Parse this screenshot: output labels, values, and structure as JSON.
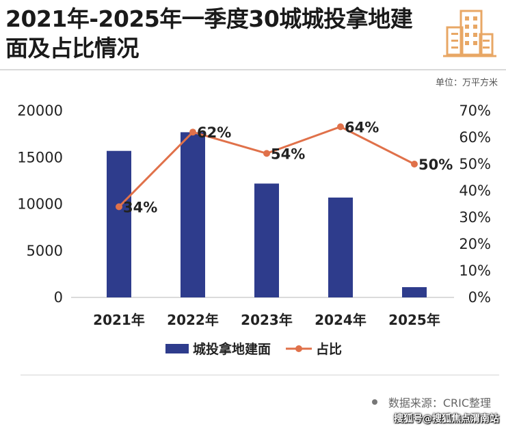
{
  "header": {
    "title": "2021年-2025年一季度30城城投拿地建面及占比情况",
    "unit_label": "单位：万平方米"
  },
  "footer": {
    "source": "数据来源：CRIC整理",
    "watermark": "搜狐号@搜狐焦点渭南站"
  },
  "colors": {
    "bar": "#2e3c8c",
    "line": "#e0714a",
    "logo": "#e8a765"
  },
  "icons": {
    "logo": "building-icon"
  },
  "chart_data": {
    "type": "bar",
    "categories": [
      "2021年",
      "2022年",
      "2023年",
      "2024年",
      "2025年"
    ],
    "series": [
      {
        "name": "城投拿地建面",
        "type": "bar",
        "axis": "left",
        "values": [
          15700,
          17700,
          12200,
          10700,
          1100
        ]
      },
      {
        "name": "占比",
        "type": "line",
        "axis": "right",
        "values": [
          34,
          62,
          54,
          64,
          50
        ],
        "labels": [
          "34%",
          "62%",
          "54%",
          "64%",
          "50%"
        ]
      }
    ],
    "y_left": {
      "min": 0,
      "max": 20000,
      "ticks": [
        0,
        5000,
        10000,
        15000,
        20000
      ]
    },
    "y_right": {
      "min": 0,
      "max": 70,
      "ticks": [
        "0%",
        "10%",
        "20%",
        "30%",
        "40%",
        "50%",
        "60%",
        "70%"
      ]
    },
    "legend": {
      "position": "bottom",
      "items": [
        "城投拿地建面",
        "占比"
      ]
    },
    "grid": false
  }
}
